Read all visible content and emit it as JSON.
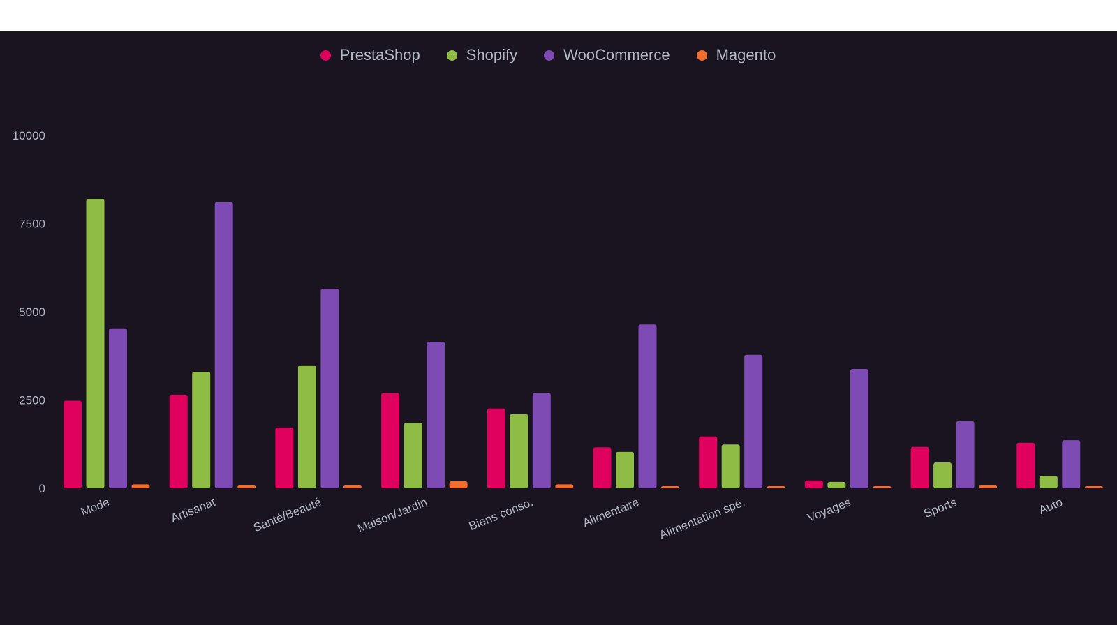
{
  "chart_data": {
    "type": "bar",
    "categories": [
      "Mode",
      "Artisanat",
      "Santé/Beauté",
      "Maison/Jardin",
      "Biens conso.",
      "Alimentaire",
      "Alimentation spé.",
      "Voyages",
      "Sports",
      "Auto"
    ],
    "series": [
      {
        "name": "PrestaShop",
        "color": "#e0005e",
        "values": [
          2480,
          2650,
          1720,
          2700,
          2260,
          1160,
          1470,
          220,
          1170,
          1290
        ]
      },
      {
        "name": "Shopify",
        "color": "#8fbc45",
        "values": [
          8200,
          3300,
          3480,
          1850,
          2100,
          1030,
          1240,
          180,
          730,
          350
        ]
      },
      {
        "name": "WooCommerce",
        "color": "#7e4ab4",
        "values": [
          4530,
          8110,
          5650,
          4150,
          2700,
          4640,
          3780,
          3380,
          1900,
          1360
        ]
      },
      {
        "name": "Magento",
        "color": "#f26c2b",
        "values": [
          110,
          80,
          80,
          200,
          110,
          40,
          40,
          30,
          80,
          40
        ]
      }
    ],
    "yticks": [
      "0",
      "2500",
      "5000",
      "7500",
      "10000"
    ],
    "ylim": [
      0,
      10000
    ],
    "grid": false,
    "legend_position": "top-center"
  },
  "theme": {
    "background": "#19141f",
    "text_color": "#b4b9c8"
  }
}
